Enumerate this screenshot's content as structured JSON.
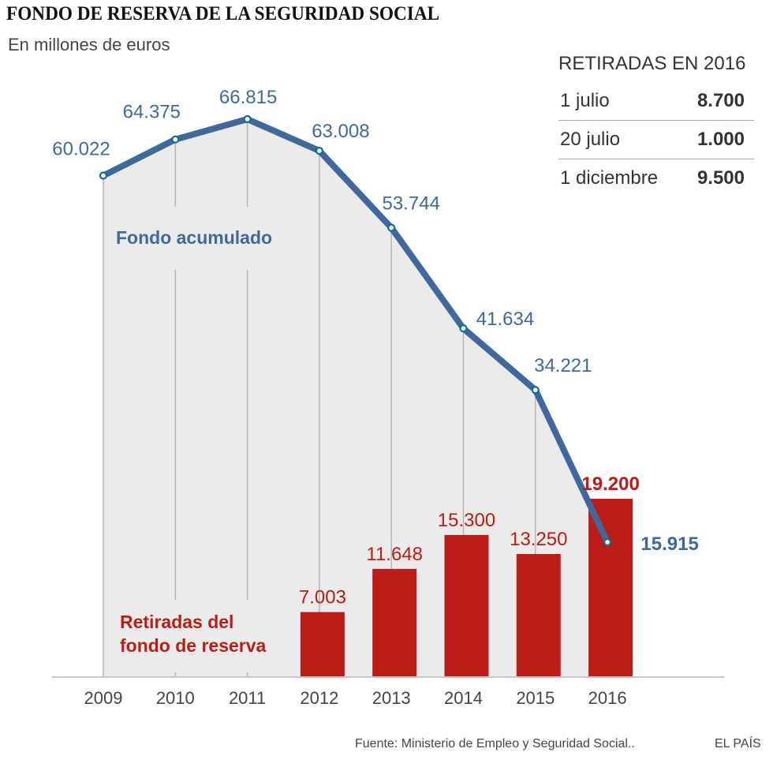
{
  "title": "FONDO DE RESERVA DE LA SEGURIDAD SOCIAL",
  "subtitle": "En millones de euros",
  "withdrawals_2016": {
    "title": "RETIRADAS EN 2016",
    "rows": [
      {
        "date": "1 julio",
        "value": "8.700"
      },
      {
        "date": "20 julio",
        "value": "1.000"
      },
      {
        "date": "1 diciembre",
        "value": "9.500"
      }
    ]
  },
  "source": "Fuente: Ministerio de Empleo y Seguridad Social..",
  "brand": "EL PAÍS",
  "colors": {
    "line": "#41689c",
    "bar": "#bc1c17",
    "area": "#ebebeb",
    "marker": "#0b6e9a"
  },
  "chart_data": {
    "type": "bar+line",
    "title": "FONDO DE RESERVA DE LA SEGURIDAD SOCIAL",
    "subtitle": "En millones de euros",
    "categories": [
      "2009",
      "2010",
      "2011",
      "2012",
      "2013",
      "2014",
      "2015",
      "2016"
    ],
    "series": [
      {
        "name": "Fondo acumulado",
        "type": "line",
        "values": [
          60022,
          64375,
          66815,
          63008,
          53744,
          41634,
          34221,
          15915
        ],
        "labels": [
          "60.022",
          "64.375",
          "66.815",
          "63.008",
          "53.744",
          "41.634",
          "34.221",
          "15.915"
        ]
      },
      {
        "name": "Retiradas del fondo de reserva",
        "name_lines": [
          "Retiradas del",
          "fondo de reserva"
        ],
        "type": "bar",
        "values": [
          null,
          null,
          null,
          7003,
          11648,
          15300,
          13250,
          19200
        ],
        "labels": [
          "",
          "",
          "",
          "7.003",
          "11.648",
          "15.300",
          "13.250",
          "19.200"
        ]
      }
    ],
    "xlabel": "",
    "ylabel": "",
    "grid": false
  }
}
